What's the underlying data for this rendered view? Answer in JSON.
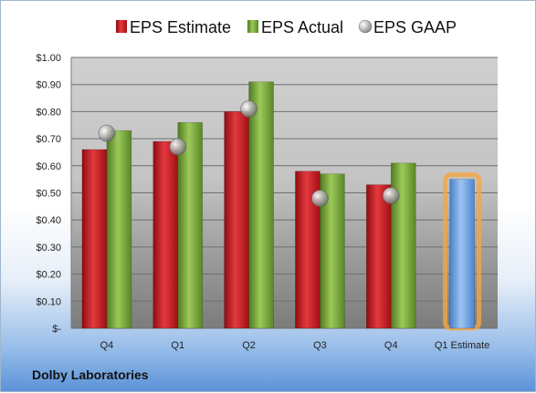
{
  "chart_data": {
    "type": "bar",
    "categories": [
      "Q4",
      "Q1",
      "Q2",
      "Q3",
      "Q4",
      "Q1 Estimate"
    ],
    "series": [
      {
        "name": "EPS Estimate",
        "kind": "bar",
        "color": "#c8141a",
        "values": [
          0.66,
          0.69,
          0.8,
          0.58,
          0.53,
          null
        ]
      },
      {
        "name": "EPS Actual",
        "kind": "bar",
        "color": "#76a537",
        "values": [
          0.73,
          0.76,
          0.91,
          0.57,
          0.61,
          null
        ]
      },
      {
        "name": "EPS GAAP",
        "kind": "marker",
        "color": "#a8a8a8",
        "values": [
          0.72,
          0.67,
          0.81,
          0.48,
          0.49,
          null
        ]
      },
      {
        "name": "",
        "kind": "bar",
        "color": "#6fa0e0",
        "highlight": "#f5a640",
        "values": [
          null,
          null,
          null,
          null,
          null,
          0.55
        ]
      }
    ],
    "ylim": [
      0,
      1.0
    ],
    "yticks": [
      0,
      0.1,
      0.2,
      0.3,
      0.4,
      0.5,
      0.6,
      0.7,
      0.8,
      0.9,
      1.0
    ],
    "ytick_labels": [
      "$-",
      "$0.10",
      "$0.20",
      "$0.30",
      "$0.40",
      "$0.50",
      "$0.60",
      "$0.70",
      "$0.80",
      "$0.90",
      "$1.00"
    ],
    "grid": true,
    "legend_position": "top"
  },
  "footer": {
    "company": "Dolby Laboratories"
  }
}
